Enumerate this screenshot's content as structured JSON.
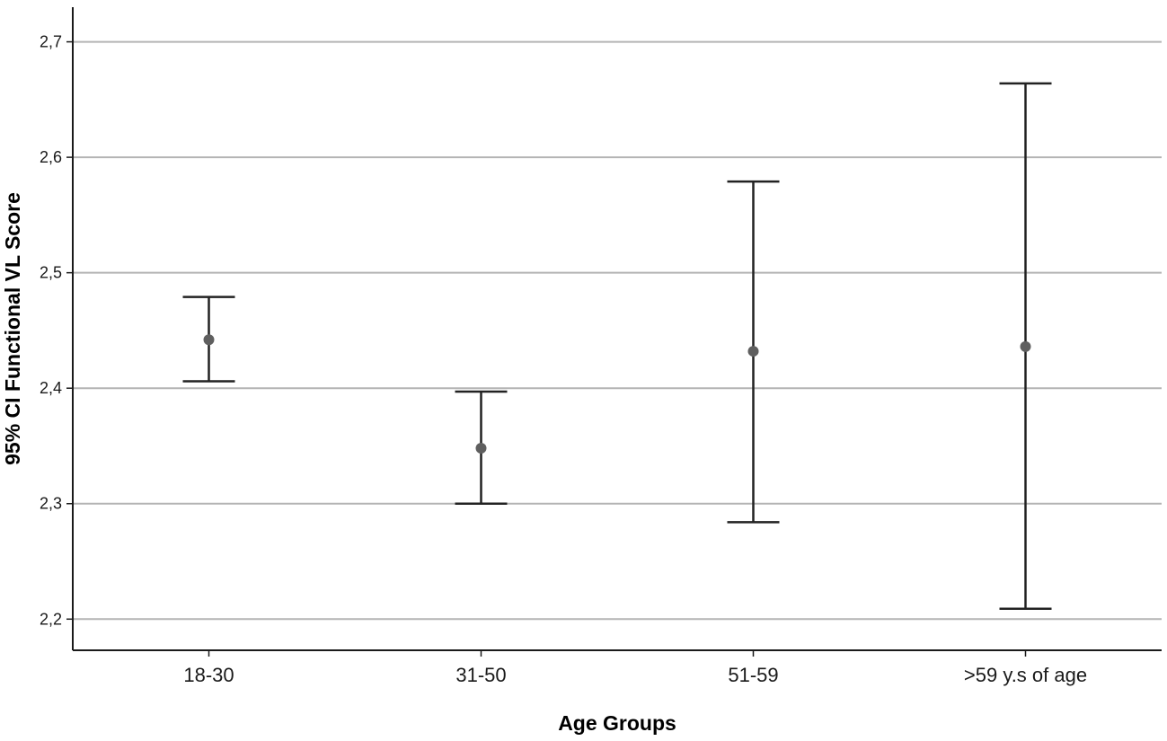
{
  "chart_data": {
    "type": "errorbar",
    "xlabel": "Age Groups",
    "ylabel": "95% CI Functional VL Score",
    "categories": [
      "18-30",
      "31-50",
      "51-59",
      ">59 y.s of age"
    ],
    "series": [
      {
        "mean": [
          2.442,
          2.348,
          2.432,
          2.436
        ],
        "lower": [
          2.406,
          2.3,
          2.284,
          2.209
        ],
        "upper": [
          2.479,
          2.397,
          2.579,
          2.664
        ]
      }
    ],
    "ylim": [
      2.173,
      2.73
    ],
    "yticks": [
      2.2,
      2.3,
      2.4,
      2.5,
      2.6,
      2.7
    ],
    "ytick_labels": [
      "2,2",
      "2,3",
      "2,4",
      "2,5",
      "2,6",
      "2,7"
    ],
    "grid": true,
    "legend": "none",
    "colors": {
      "grid": "#b4b4b4",
      "bar": "#222222",
      "point": "#5f5f5f",
      "axis": "#1a1a1a"
    }
  }
}
